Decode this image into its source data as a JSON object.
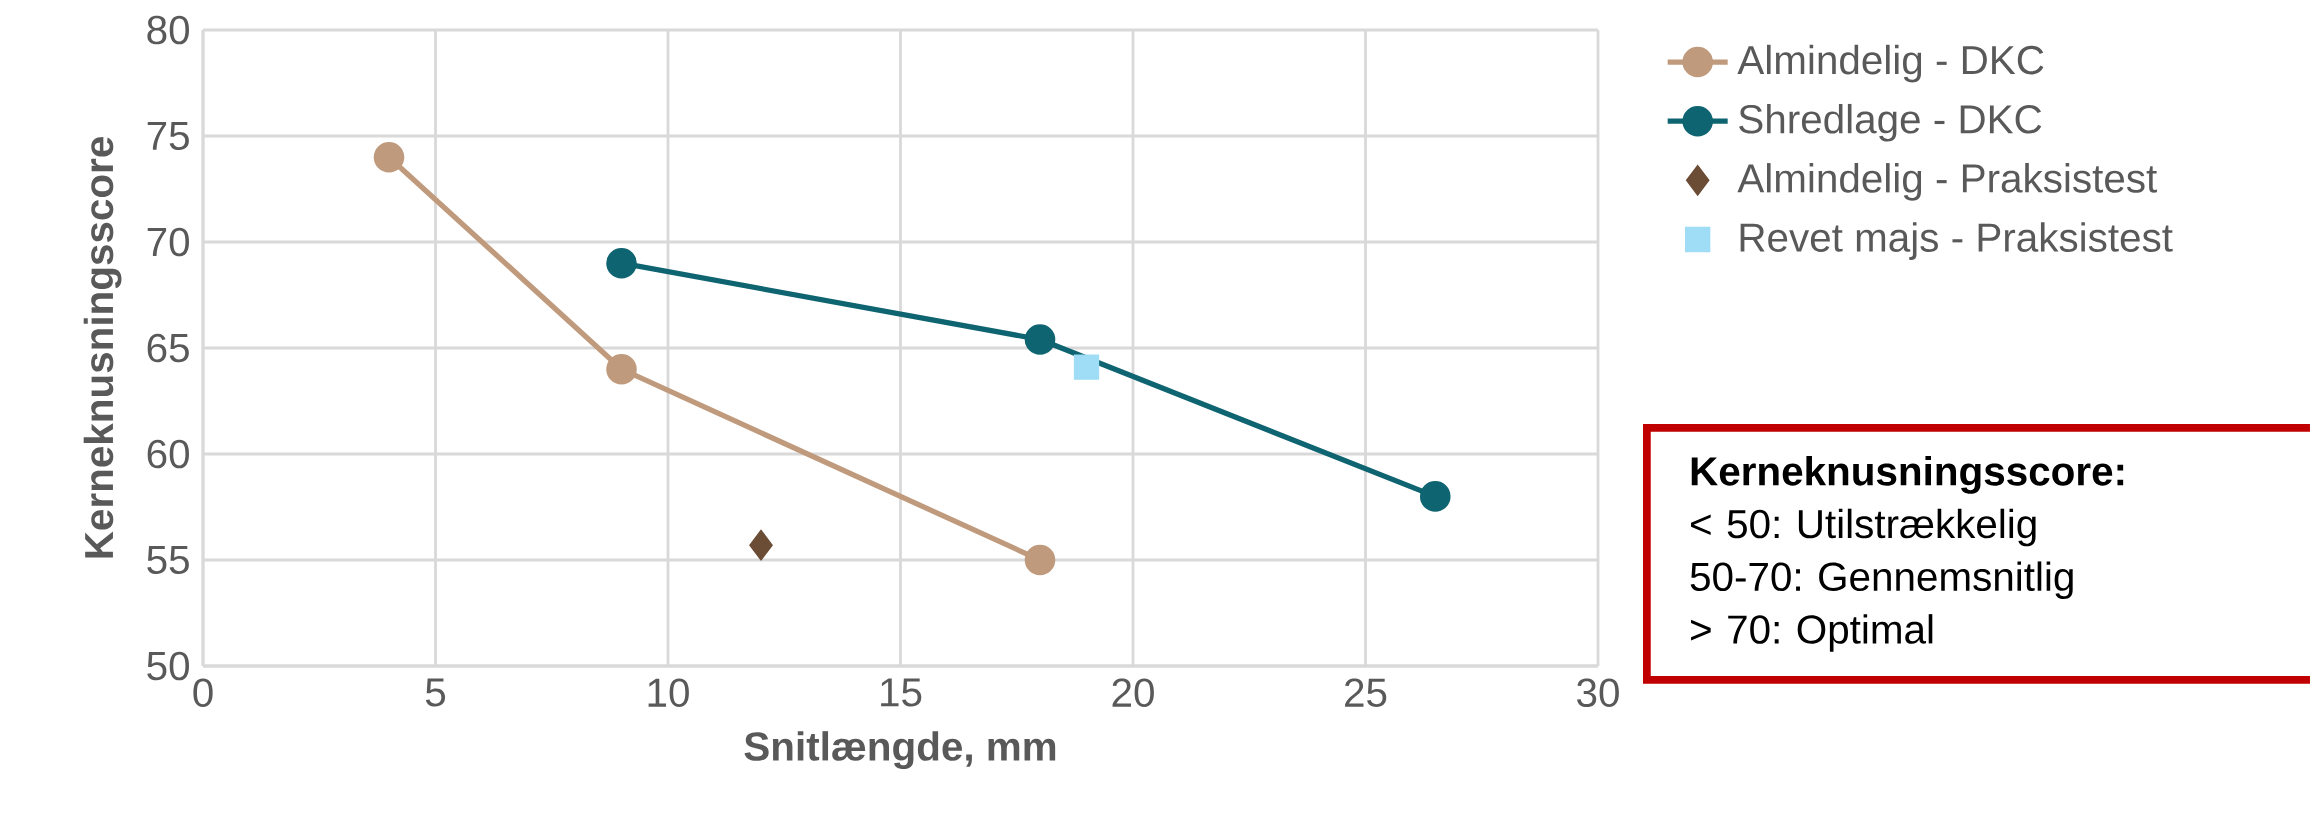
{
  "chart_data": {
    "type": "line",
    "xlabel": "Snitlængde, mm",
    "ylabel": "Kerneknusningsscore",
    "xlim": [
      0,
      30
    ],
    "xticks": [
      0,
      5,
      10,
      15,
      20,
      25,
      30
    ],
    "ylim": [
      50,
      80
    ],
    "yticks": [
      50,
      55,
      60,
      65,
      70,
      75,
      80
    ],
    "grid": true,
    "legend": "top right",
    "line_style": "solid",
    "series": [
      {
        "name": "Almindelig - DKC",
        "marker": "circle",
        "color": "#c09a7c",
        "x": [
          4,
          9,
          18
        ],
        "values": [
          74,
          64,
          55
        ]
      },
      {
        "name": "Shredlage - DKC",
        "marker": "circle",
        "color": "#0e6470",
        "x": [
          9,
          18,
          26.5
        ],
        "values": [
          69,
          65.4,
          58
        ]
      },
      {
        "name": "Almindelig - Praksistest",
        "type": "scatter",
        "marker": "diamond",
        "color": "#6b4c35",
        "x": [
          12
        ],
        "values": [
          55.7
        ]
      },
      {
        "name": "Revet majs - Praksistest",
        "type": "scatter",
        "marker": "square",
        "color": "#9fdcf5",
        "x": [
          19
        ],
        "values": [
          64.1
        ]
      }
    ],
    "annotations": [
      "Kerneknusningsscore:",
      "< 50: Utilstrækkelig",
      "50-70: Gennemsnitlig",
      "> 70: Optimal"
    ]
  }
}
